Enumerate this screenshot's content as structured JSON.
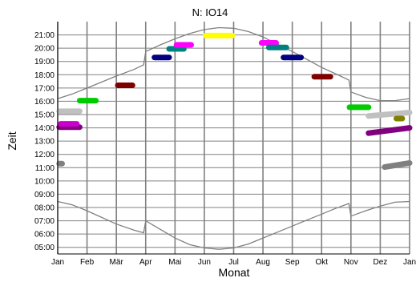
{
  "chart_data": {
    "type": "scatter",
    "title": "N: IO14",
    "xlabel": "Monat",
    "ylabel": "Zeit",
    "x_ticks": [
      "Jan",
      "Feb",
      "Mär",
      "Apr",
      "Mai",
      "Jun",
      "Jul",
      "Aug",
      "Sep",
      "Okt",
      "Nov",
      "Dez",
      "Jan"
    ],
    "y_ticks": [
      "05:00",
      "06:00",
      "07:00",
      "08:00",
      "09:00",
      "10:00",
      "11:00",
      "12:00",
      "13:00",
      "14:00",
      "15:00",
      "16:00",
      "17:00",
      "18:00",
      "19:00",
      "20:00",
      "21:00"
    ],
    "ylim_hours": [
      4.5,
      22.0
    ],
    "grid": true,
    "colors": {
      "grid": "#808080",
      "curve": "#808080",
      "axis": "#000000"
    },
    "sunset_curve": [
      [
        0.0,
        16.2
      ],
      [
        0.5,
        16.55
      ],
      [
        1.0,
        17.0
      ],
      [
        1.5,
        17.45
      ],
      [
        2.0,
        17.9
      ],
      [
        2.6,
        18.4
      ],
      [
        2.93,
        18.75
      ],
      [
        3.0,
        19.75
      ],
      [
        3.5,
        20.25
      ],
      [
        4.0,
        20.7
      ],
      [
        4.5,
        21.1
      ],
      [
        5.0,
        21.4
      ],
      [
        5.5,
        21.55
      ],
      [
        6.0,
        21.5
      ],
      [
        6.5,
        21.25
      ],
      [
        7.0,
        20.85
      ],
      [
        7.5,
        20.3
      ],
      [
        8.0,
        19.75
      ],
      [
        8.5,
        19.15
      ],
      [
        9.0,
        18.55
      ],
      [
        9.5,
        18.05
      ],
      [
        9.93,
        17.6
      ],
      [
        10.0,
        16.7
      ],
      [
        10.5,
        16.3
      ],
      [
        11.0,
        16.05
      ],
      [
        11.5,
        16.05
      ],
      [
        12.0,
        16.2
      ]
    ],
    "sunrise_curve": [
      [
        0.0,
        8.45
      ],
      [
        0.5,
        8.2
      ],
      [
        1.0,
        7.75
      ],
      [
        1.5,
        7.25
      ],
      [
        2.0,
        6.75
      ],
      [
        2.6,
        6.3
      ],
      [
        2.93,
        6.1
      ],
      [
        3.0,
        7.0
      ],
      [
        3.5,
        6.35
      ],
      [
        4.0,
        5.7
      ],
      [
        4.5,
        5.2
      ],
      [
        5.0,
        4.95
      ],
      [
        5.5,
        4.85
      ],
      [
        6.0,
        4.95
      ],
      [
        6.5,
        5.25
      ],
      [
        7.0,
        5.7
      ],
      [
        7.5,
        6.15
      ],
      [
        8.0,
        6.6
      ],
      [
        8.5,
        7.05
      ],
      [
        9.0,
        7.5
      ],
      [
        9.5,
        7.95
      ],
      [
        9.93,
        8.3
      ],
      [
        10.0,
        7.35
      ],
      [
        10.5,
        7.75
      ],
      [
        11.0,
        8.1
      ],
      [
        11.5,
        8.4
      ],
      [
        12.0,
        8.45
      ]
    ],
    "series": [
      {
        "color": "#808080",
        "points": [
          [
            0.05,
            11.3
          ],
          [
            0.15,
            11.3
          ]
        ]
      },
      {
        "color": "#c0c0c0",
        "points": [
          [
            0.05,
            15.25
          ],
          [
            0.75,
            15.25
          ]
        ]
      },
      {
        "color": "#800080",
        "points": [
          [
            0.05,
            14.05
          ],
          [
            0.75,
            14.05
          ]
        ]
      },
      {
        "color": "#cc00cc",
        "points": [
          [
            0.1,
            14.3
          ],
          [
            0.65,
            14.3
          ]
        ]
      },
      {
        "color": "#00cc00",
        "points": [
          [
            0.75,
            16.05
          ],
          [
            1.3,
            16.05
          ]
        ]
      },
      {
        "color": "#800000",
        "points": [
          [
            2.05,
            17.2
          ],
          [
            2.55,
            17.2
          ]
        ]
      },
      {
        "color": "#000080",
        "points": [
          [
            3.3,
            19.3
          ],
          [
            3.8,
            19.3
          ]
        ]
      },
      {
        "color": "#008080",
        "points": [
          [
            3.8,
            19.95
          ],
          [
            4.3,
            19.95
          ]
        ]
      },
      {
        "color": "#ff00ff",
        "points": [
          [
            4.05,
            20.25
          ],
          [
            4.55,
            20.25
          ]
        ]
      },
      {
        "color": "#ffff00",
        "points": [
          [
            5.05,
            20.95
          ],
          [
            5.95,
            20.95
          ]
        ]
      },
      {
        "color": "#ff00ff",
        "points": [
          [
            6.95,
            20.4
          ],
          [
            7.45,
            20.4
          ]
        ]
      },
      {
        "color": "#008080",
        "points": [
          [
            7.2,
            20.05
          ],
          [
            7.8,
            20.05
          ]
        ]
      },
      {
        "color": "#000080",
        "points": [
          [
            7.7,
            19.3
          ],
          [
            8.3,
            19.3
          ]
        ]
      },
      {
        "color": "#800000",
        "points": [
          [
            8.75,
            17.85
          ],
          [
            9.3,
            17.85
          ]
        ]
      },
      {
        "color": "#00cc00",
        "points": [
          [
            9.95,
            15.55
          ],
          [
            10.6,
            15.55
          ]
        ]
      },
      {
        "color": "#c0c0c0",
        "points": [
          [
            10.6,
            14.9
          ],
          [
            12.0,
            15.15
          ]
        ]
      },
      {
        "color": "#808000",
        "points": [
          [
            11.55,
            14.7
          ],
          [
            11.75,
            14.7
          ]
        ]
      },
      {
        "color": "#800080",
        "points": [
          [
            10.6,
            13.6
          ],
          [
            12.0,
            14.0
          ]
        ]
      },
      {
        "color": "#808080",
        "points": [
          [
            11.15,
            11.05
          ],
          [
            12.0,
            11.35
          ]
        ]
      }
    ]
  }
}
